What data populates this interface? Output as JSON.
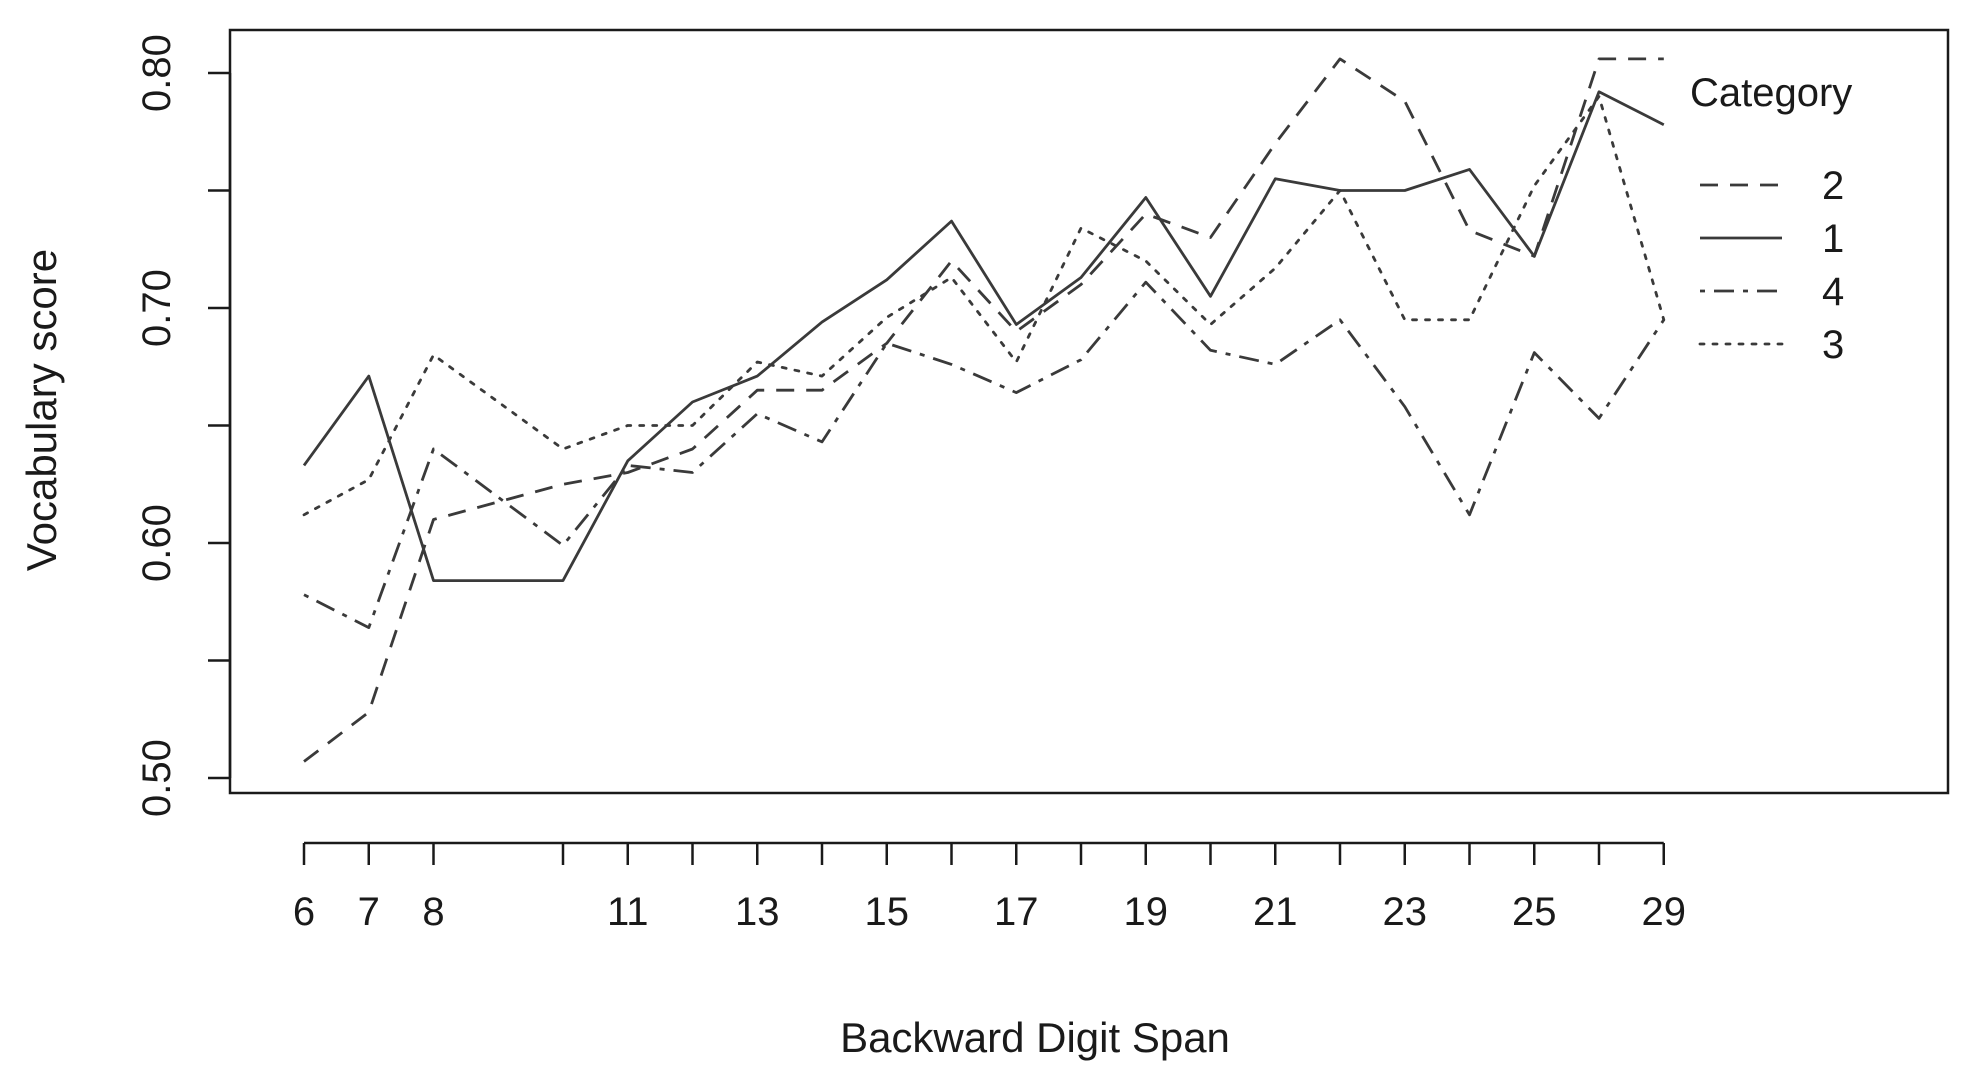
{
  "chart_data": {
    "type": "line",
    "title": "",
    "xlabel": "Backward Digit Span",
    "ylabel": "Vocabulary score",
    "x": [
      "6",
      "7",
      "8",
      "10",
      "11",
      "12",
      "13",
      "14",
      "15",
      "16",
      "17",
      "18",
      "19",
      "20",
      "21",
      "22",
      "23",
      "24",
      "25",
      "26",
      "29"
    ],
    "x_tick_labels": [
      "6",
      "7",
      "8",
      "11",
      "13",
      "15",
      "17",
      "19",
      "21",
      "23",
      "25",
      "29"
    ],
    "y_ticks": [
      "0.50",
      "0.60",
      "0.70",
      "0.80"
    ],
    "ylim": [
      0.495,
      0.815
    ],
    "grid": false,
    "legend": {
      "title": "Category",
      "placement": "top-right",
      "entries": [
        "2",
        "1",
        "4",
        "3"
      ]
    },
    "series": [
      {
        "name": "2",
        "line_style": "dashed",
        "values": [
          0.507,
          0.528,
          0.61,
          0.625,
          0.63,
          0.64,
          0.665,
          0.665,
          0.685,
          0.72,
          0.69,
          0.71,
          0.74,
          0.73,
          0.77,
          0.806,
          0.788,
          0.733,
          0.722,
          0.806,
          0.806
        ]
      },
      {
        "name": "1",
        "line_style": "solid",
        "values": [
          0.633,
          0.671,
          0.584,
          0.584,
          0.635,
          0.66,
          0.671,
          0.694,
          0.712,
          0.737,
          0.693,
          0.713,
          0.747,
          0.705,
          0.755,
          0.75,
          0.75,
          0.759,
          0.722,
          0.792,
          0.778
        ]
      },
      {
        "name": "4",
        "line_style": "dotdash",
        "values": [
          0.578,
          0.564,
          0.64,
          0.599,
          0.633,
          0.63,
          0.655,
          0.643,
          0.685,
          0.676,
          0.664,
          0.678,
          0.711,
          0.682,
          0.676,
          0.695,
          0.658,
          0.612,
          0.681,
          0.653,
          0.695
        ]
      },
      {
        "name": "3",
        "line_style": "dotted",
        "values": [
          0.612,
          0.627,
          0.68,
          0.64,
          0.65,
          0.65,
          0.677,
          0.671,
          0.696,
          0.713,
          0.677,
          0.734,
          0.72,
          0.693,
          0.717,
          0.75,
          0.695,
          0.695,
          0.752,
          0.79,
          0.695
        ]
      }
    ],
    "colors": {
      "line": "#3a3a3a",
      "frame": "#1a1a1a",
      "background": "#ffffff"
    }
  }
}
